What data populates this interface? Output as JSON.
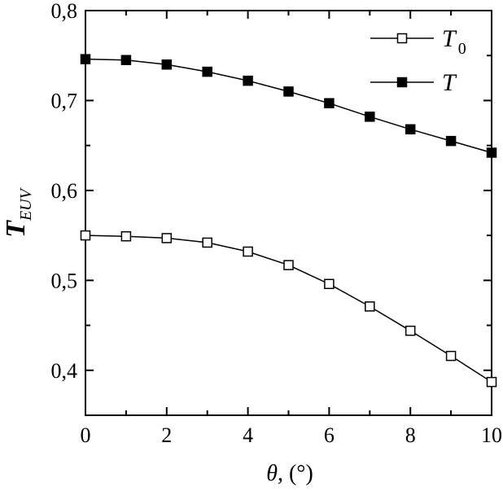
{
  "chart_data": {
    "type": "line",
    "title": "",
    "xlabel": "θ, (°)",
    "ylabel": "T_EUV",
    "xlim": [
      0,
      10
    ],
    "ylim": [
      0.35,
      0.8
    ],
    "xticks": [
      0,
      2,
      4,
      6,
      8,
      10
    ],
    "xtick_labels": [
      "0",
      "2",
      "4",
      "6",
      "8",
      "10"
    ],
    "yticks": [
      0.4,
      0.5,
      0.6,
      0.7,
      0.8
    ],
    "ytick_labels": [
      "0,4",
      "0,5",
      "0,6",
      "0,7",
      "0,8"
    ],
    "grid": false,
    "legend_position": "top-right",
    "x": [
      0,
      1,
      2,
      3,
      4,
      5,
      6,
      7,
      8,
      9,
      10
    ],
    "series": [
      {
        "name": "T0",
        "label_main": "T",
        "label_sub": "0",
        "marker": "open-square",
        "values": [
          0.55,
          0.549,
          0.547,
          0.542,
          0.532,
          0.517,
          0.496,
          0.471,
          0.444,
          0.416,
          0.387
        ]
      },
      {
        "name": "T",
        "label_main": "T",
        "label_sub": "",
        "marker": "filled-square",
        "values": [
          0.746,
          0.745,
          0.74,
          0.732,
          0.722,
          0.71,
          0.697,
          0.682,
          0.668,
          0.655,
          0.642
        ]
      }
    ],
    "colors": {
      "line": "#000000",
      "marker_fill_open": "#ffffff",
      "marker_fill_filled": "#000000"
    }
  }
}
